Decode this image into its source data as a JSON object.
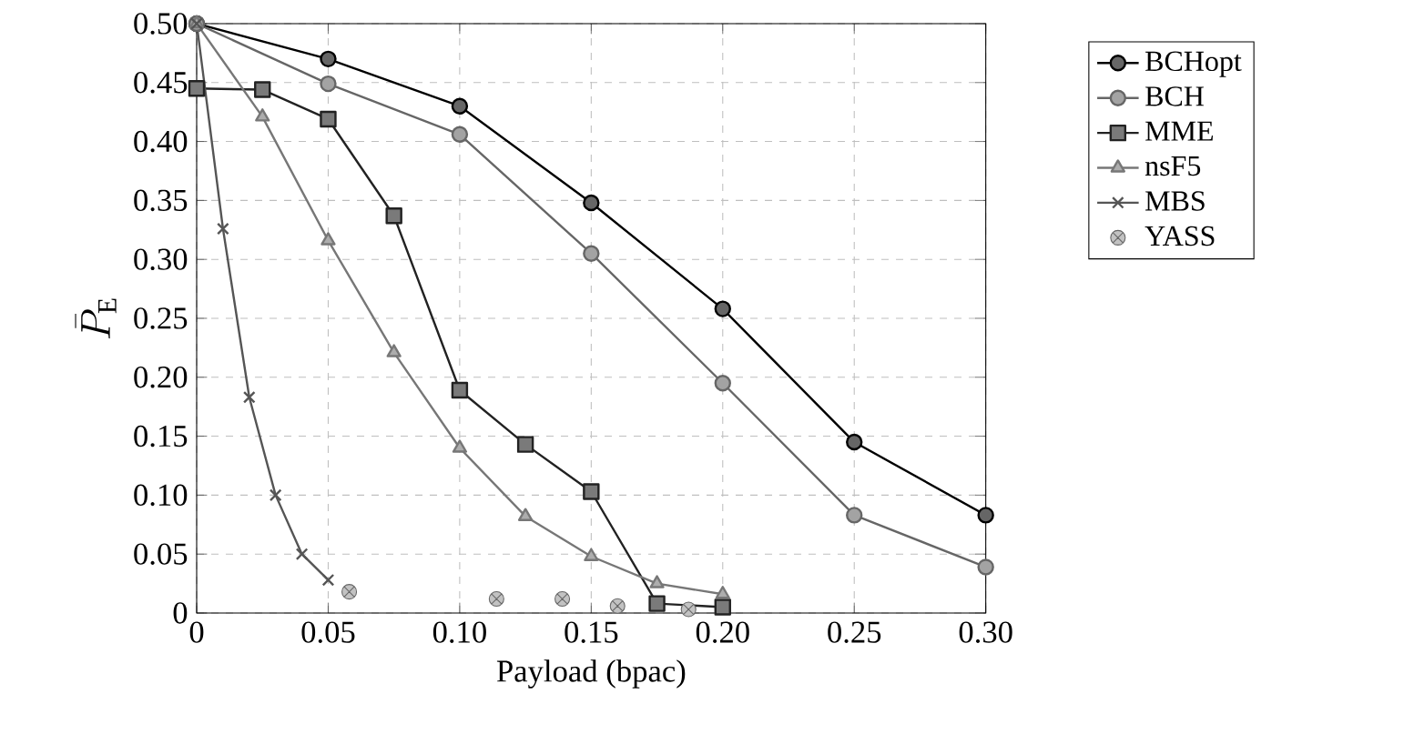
{
  "chart_data": {
    "type": "line",
    "xlabel": "Payload (bpac)",
    "ylabel": "\\bar{P}_\\mathrm{E}",
    "xlim": [
      0,
      0.3
    ],
    "ylim": [
      0,
      0.5
    ],
    "xticks": [
      {
        "value": 0,
        "label": "0"
      },
      {
        "value": 0.05,
        "label": "0.05"
      },
      {
        "value": 0.1,
        "label": "0.10"
      },
      {
        "value": 0.15,
        "label": "0.15"
      },
      {
        "value": 0.2,
        "label": "0.20"
      },
      {
        "value": 0.25,
        "label": "0.25"
      },
      {
        "value": 0.3,
        "label": "0.30"
      }
    ],
    "yticks": [
      {
        "value": 0,
        "label": "0"
      },
      {
        "value": 0.05,
        "label": "0.05"
      },
      {
        "value": 0.1,
        "label": "0.10"
      },
      {
        "value": 0.15,
        "label": "0.15"
      },
      {
        "value": 0.2,
        "label": "0.20"
      },
      {
        "value": 0.25,
        "label": "0.25"
      },
      {
        "value": 0.3,
        "label": "0.30"
      },
      {
        "value": 0.35,
        "label": "0.35"
      },
      {
        "value": 0.4,
        "label": "0.40"
      },
      {
        "value": 0.45,
        "label": "0.45"
      },
      {
        "value": 0.5,
        "label": "0.50"
      }
    ],
    "grid": true,
    "legend": "right",
    "line_style": "solid",
    "series": [
      {
        "name": "BCHopt",
        "color": "#000000",
        "marker": "circle",
        "x": [
          0,
          0.05,
          0.1,
          0.15,
          0.2,
          0.25,
          0.3
        ],
        "values": [
          0.5,
          0.47,
          0.43,
          0.348,
          0.258,
          0.145,
          0.083
        ]
      },
      {
        "name": "BCH",
        "color": "#666666",
        "marker": "circle",
        "x": [
          0,
          0.05,
          0.1,
          0.15,
          0.2,
          0.25,
          0.3
        ],
        "values": [
          0.5,
          0.449,
          0.406,
          0.305,
          0.195,
          0.083,
          0.039
        ]
      },
      {
        "name": "MME",
        "color": "#222222",
        "marker": "square",
        "x": [
          0,
          0.025,
          0.05,
          0.075,
          0.1,
          0.125,
          0.15,
          0.175,
          0.2
        ],
        "values": [
          0.445,
          0.444,
          0.419,
          0.337,
          0.189,
          0.143,
          0.103,
          0.008,
          0.005
        ]
      },
      {
        "name": "nsF5",
        "color": "#777777",
        "marker": "triangle",
        "x": [
          0,
          0.025,
          0.05,
          0.075,
          0.1,
          0.125,
          0.15,
          0.175,
          0.2
        ],
        "values": [
          0.5,
          0.421,
          0.316,
          0.221,
          0.14,
          0.082,
          0.048,
          0.025,
          0.016
        ]
      },
      {
        "name": "MBS",
        "color": "#555555",
        "marker": "cross",
        "x": [
          0,
          0.01,
          0.02,
          0.03,
          0.04,
          0.05
        ],
        "values": [
          0.5,
          0.326,
          0.183,
          0.1,
          0.05,
          0.028
        ]
      },
      {
        "name": "YASS",
        "type": "scatter",
        "color": "#666666",
        "marker": "cross",
        "x": [
          0.058,
          0.114,
          0.139,
          0.16,
          0.187
        ],
        "values": [
          0.018,
          0.012,
          0.012,
          0.006,
          0.003
        ]
      }
    ]
  }
}
